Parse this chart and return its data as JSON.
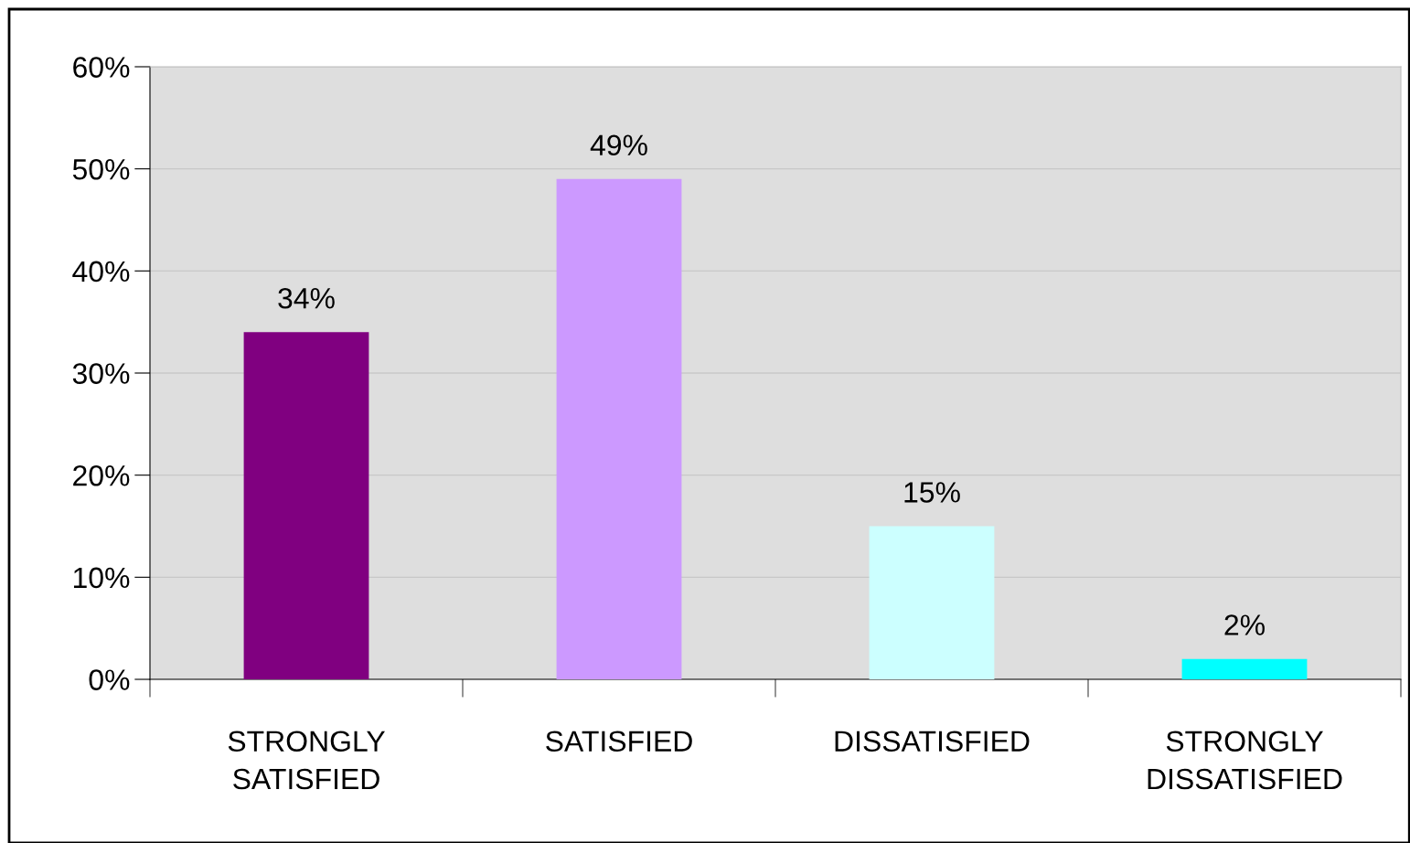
{
  "chart_data": {
    "type": "bar",
    "categories": [
      "STRONGLY\nSATISFIED",
      "SATISFIED",
      "DISSATISFIED",
      "STRONGLY\nDISSATISFIED"
    ],
    "values": [
      34,
      49,
      15,
      2
    ],
    "colors": [
      "#800080",
      "#cc99ff",
      "#ccffff",
      "#00ffff"
    ],
    "value_labels": [
      "34%",
      "49%",
      "15%",
      "2%"
    ],
    "ylim": [
      0,
      60
    ],
    "yticks": [
      {
        "value": 0,
        "label": "0%"
      },
      {
        "value": 10,
        "label": "10%"
      },
      {
        "value": 20,
        "label": "20%"
      },
      {
        "value": 30,
        "label": "30%"
      },
      {
        "value": 40,
        "label": "40%"
      },
      {
        "value": 50,
        "label": "50%"
      },
      {
        "value": 60,
        "label": "60%"
      }
    ],
    "grid": "y",
    "legend": false
  }
}
